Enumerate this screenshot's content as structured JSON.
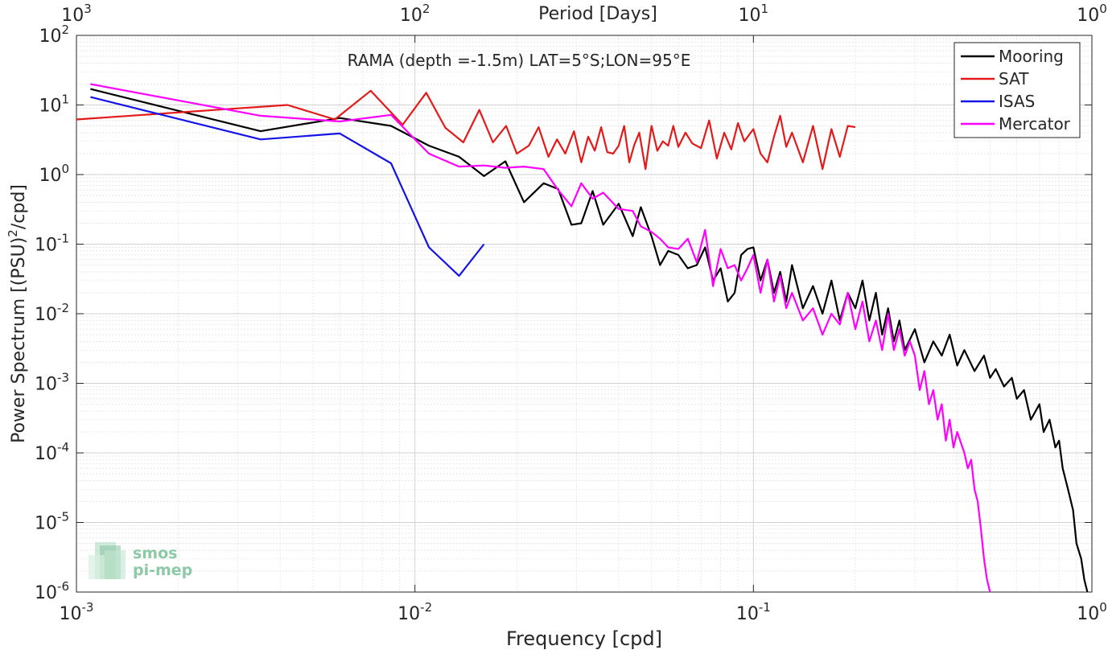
{
  "chart_data": {
    "type": "line",
    "title": "RAMA (depth =-1.5m) LAT=5°S;LON=95°E",
    "xlabel": "Frequency [cpd]",
    "ylabel": "Power Spectrum [(PSU)",
    "ylabel_sup": "2",
    "ylabel_tail": "/cpd]",
    "top_xlabel": "Period [Days]",
    "xscale": "log",
    "yscale": "log",
    "xlim": [
      0.001,
      1
    ],
    "ylim": [
      1e-06,
      100
    ],
    "grid": true,
    "legend_position": "top-right",
    "x_ticks": [
      {
        "value": 0.001,
        "base": "10",
        "exp": "-3"
      },
      {
        "value": 0.01,
        "base": "10",
        "exp": "-2"
      },
      {
        "value": 0.1,
        "base": "10",
        "exp": "-1"
      },
      {
        "value": 1,
        "base": "10",
        "exp": "0"
      }
    ],
    "top_x_ticks": [
      {
        "value": 0.001,
        "base": "10",
        "exp": "3"
      },
      {
        "value": 0.01,
        "base": "10",
        "exp": "2"
      },
      {
        "value": 0.1,
        "base": "10",
        "exp": "1"
      },
      {
        "value": 1,
        "base": "10",
        "exp": "0"
      }
    ],
    "y_ticks": [
      {
        "value": 100,
        "base": "10",
        "exp": "2"
      },
      {
        "value": 10,
        "base": "10",
        "exp": "1"
      },
      {
        "value": 1,
        "base": "10",
        "exp": "0"
      },
      {
        "value": 0.1,
        "base": "10",
        "exp": "-1"
      },
      {
        "value": 0.01,
        "base": "10",
        "exp": "-2"
      },
      {
        "value": 0.001,
        "base": "10",
        "exp": "-3"
      },
      {
        "value": 0.0001,
        "base": "10",
        "exp": "-4"
      },
      {
        "value": 1e-05,
        "base": "10",
        "exp": "-5"
      },
      {
        "value": 1e-06,
        "base": "10",
        "exp": "-6"
      }
    ],
    "series": [
      {
        "name": "Mooring",
        "color": "#000000",
        "points": [
          [
            0.0011,
            17
          ],
          [
            0.0035,
            4.2
          ],
          [
            0.006,
            6.5
          ],
          [
            0.0085,
            5
          ],
          [
            0.011,
            2.6
          ],
          [
            0.0135,
            1.8
          ],
          [
            0.016,
            0.95
          ],
          [
            0.0185,
            1.55
          ],
          [
            0.021,
            0.4
          ],
          [
            0.024,
            0.75
          ],
          [
            0.0265,
            0.62
          ],
          [
            0.029,
            0.19
          ],
          [
            0.031,
            0.2
          ],
          [
            0.0335,
            0.58
          ],
          [
            0.036,
            0.19
          ],
          [
            0.04,
            0.38
          ],
          [
            0.044,
            0.13
          ],
          [
            0.0465,
            0.34
          ],
          [
            0.05,
            0.13
          ],
          [
            0.053,
            0.05
          ],
          [
            0.056,
            0.08
          ],
          [
            0.06,
            0.07
          ],
          [
            0.064,
            0.045
          ],
          [
            0.068,
            0.05
          ],
          [
            0.072,
            0.09
          ],
          [
            0.076,
            0.03
          ],
          [
            0.08,
            0.045
          ],
          [
            0.084,
            0.015
          ],
          [
            0.088,
            0.02
          ],
          [
            0.092,
            0.07
          ],
          [
            0.096,
            0.085
          ],
          [
            0.1,
            0.09
          ],
          [
            0.105,
            0.03
          ],
          [
            0.11,
            0.06
          ],
          [
            0.115,
            0.02
          ],
          [
            0.12,
            0.04
          ],
          [
            0.125,
            0.015
          ],
          [
            0.13,
            0.05
          ],
          [
            0.14,
            0.012
          ],
          [
            0.15,
            0.025
          ],
          [
            0.16,
            0.01
          ],
          [
            0.17,
            0.03
          ],
          [
            0.18,
            0.008
          ],
          [
            0.19,
            0.02
          ],
          [
            0.2,
            0.012
          ],
          [
            0.21,
            0.03
          ],
          [
            0.22,
            0.008
          ],
          [
            0.23,
            0.02
          ],
          [
            0.24,
            0.005
          ],
          [
            0.25,
            0.012
          ],
          [
            0.26,
            0.004
          ],
          [
            0.27,
            0.008
          ],
          [
            0.28,
            0.003
          ],
          [
            0.3,
            0.006
          ],
          [
            0.32,
            0.002
          ],
          [
            0.34,
            0.004
          ],
          [
            0.36,
            0.0025
          ],
          [
            0.38,
            0.005
          ],
          [
            0.4,
            0.0018
          ],
          [
            0.42,
            0.003
          ],
          [
            0.45,
            0.0015
          ],
          [
            0.48,
            0.0025
          ],
          [
            0.5,
            0.0012
          ],
          [
            0.52,
            0.0016
          ],
          [
            0.55,
            0.0009
          ],
          [
            0.58,
            0.0012
          ],
          [
            0.6,
            0.0006
          ],
          [
            0.63,
            0.0008
          ],
          [
            0.66,
            0.0003
          ],
          [
            0.7,
            0.0005
          ],
          [
            0.72,
            0.0002
          ],
          [
            0.75,
            0.0003
          ],
          [
            0.78,
            0.00012
          ],
          [
            0.8,
            0.00015
          ],
          [
            0.82,
            6e-05
          ],
          [
            0.85,
            3e-05
          ],
          [
            0.88,
            1.5e-05
          ],
          [
            0.9,
            5e-06
          ],
          [
            0.93,
            3e-06
          ],
          [
            0.95,
            1.5e-06
          ],
          [
            0.97,
            1e-06
          ]
        ]
      },
      {
        "name": "SAT",
        "color": "#e41a1a",
        "points": [
          [
            0.001,
            6.2
          ],
          [
            0.0042,
            10
          ],
          [
            0.0058,
            6.2
          ],
          [
            0.0074,
            16
          ],
          [
            0.0092,
            5.2
          ],
          [
            0.0108,
            15
          ],
          [
            0.0123,
            4.7
          ],
          [
            0.0139,
            2.9
          ],
          [
            0.0155,
            8.5
          ],
          [
            0.017,
            2.9
          ],
          [
            0.0186,
            5
          ],
          [
            0.02,
            2
          ],
          [
            0.0217,
            2.6
          ],
          [
            0.0232,
            4.8
          ],
          [
            0.0248,
            1.8
          ],
          [
            0.0263,
            3.2
          ],
          [
            0.0278,
            2
          ],
          [
            0.0295,
            4.2
          ],
          [
            0.031,
            1.5
          ],
          [
            0.0325,
            3.5
          ],
          [
            0.034,
            2.2
          ],
          [
            0.0355,
            4.8
          ],
          [
            0.037,
            2.1
          ],
          [
            0.0385,
            2
          ],
          [
            0.04,
            2.6
          ],
          [
            0.0415,
            5
          ],
          [
            0.043,
            1.5
          ],
          [
            0.0445,
            2.7
          ],
          [
            0.046,
            4
          ],
          [
            0.048,
            1.2
          ],
          [
            0.05,
            5
          ],
          [
            0.052,
            2.2
          ],
          [
            0.054,
            3
          ],
          [
            0.056,
            2.6
          ],
          [
            0.058,
            5
          ],
          [
            0.06,
            2.5
          ],
          [
            0.063,
            4
          ],
          [
            0.066,
            2.8
          ],
          [
            0.07,
            2.4
          ],
          [
            0.074,
            6
          ],
          [
            0.078,
            1.7
          ],
          [
            0.082,
            4
          ],
          [
            0.086,
            2.3
          ],
          [
            0.09,
            5.5
          ],
          [
            0.094,
            3
          ],
          [
            0.1,
            4.5
          ],
          [
            0.105,
            2
          ],
          [
            0.11,
            1.5
          ],
          [
            0.115,
            3.5
          ],
          [
            0.12,
            7
          ],
          [
            0.125,
            2.5
          ],
          [
            0.13,
            4
          ],
          [
            0.14,
            1.5
          ],
          [
            0.15,
            5
          ],
          [
            0.16,
            1.2
          ],
          [
            0.17,
            4.5
          ],
          [
            0.18,
            1.8
          ],
          [
            0.19,
            5
          ],
          [
            0.2,
            4.8
          ]
        ]
      },
      {
        "name": "ISAS",
        "color": "#1414e6",
        "points": [
          [
            0.0011,
            13
          ],
          [
            0.0035,
            3.2
          ],
          [
            0.006,
            3.9
          ],
          [
            0.0085,
            1.45
          ],
          [
            0.011,
            0.09
          ],
          [
            0.0135,
            0.035
          ],
          [
            0.016,
            0.1
          ]
        ]
      },
      {
        "name": "Mercator",
        "color": "#ff00ff",
        "points": [
          [
            0.0011,
            20
          ],
          [
            0.0035,
            7
          ],
          [
            0.006,
            5.8
          ],
          [
            0.0085,
            7.2
          ],
          [
            0.011,
            2
          ],
          [
            0.0135,
            1.3
          ],
          [
            0.016,
            1.35
          ],
          [
            0.0185,
            1.25
          ],
          [
            0.021,
            1.3
          ],
          [
            0.024,
            1.2
          ],
          [
            0.0265,
            0.6
          ],
          [
            0.029,
            0.35
          ],
          [
            0.031,
            0.75
          ],
          [
            0.0335,
            0.45
          ],
          [
            0.036,
            0.55
          ],
          [
            0.04,
            0.32
          ],
          [
            0.044,
            0.3
          ],
          [
            0.0465,
            0.18
          ],
          [
            0.05,
            0.15
          ],
          [
            0.053,
            0.12
          ],
          [
            0.056,
            0.09
          ],
          [
            0.06,
            0.085
          ],
          [
            0.064,
            0.12
          ],
          [
            0.068,
            0.055
          ],
          [
            0.072,
            0.16
          ],
          [
            0.076,
            0.025
          ],
          [
            0.08,
            0.085
          ],
          [
            0.084,
            0.045
          ],
          [
            0.088,
            0.05
          ],
          [
            0.092,
            0.03
          ],
          [
            0.096,
            0.045
          ],
          [
            0.1,
            0.07
          ],
          [
            0.105,
            0.02
          ],
          [
            0.11,
            0.06
          ],
          [
            0.115,
            0.015
          ],
          [
            0.12,
            0.035
          ],
          [
            0.125,
            0.012
          ],
          [
            0.13,
            0.02
          ],
          [
            0.14,
            0.008
          ],
          [
            0.15,
            0.012
          ],
          [
            0.16,
            0.005
          ],
          [
            0.17,
            0.01
          ],
          [
            0.18,
            0.007
          ],
          [
            0.19,
            0.02
          ],
          [
            0.2,
            0.006
          ],
          [
            0.21,
            0.015
          ],
          [
            0.22,
            0.004
          ],
          [
            0.23,
            0.008
          ],
          [
            0.24,
            0.003
          ],
          [
            0.25,
            0.01
          ],
          [
            0.26,
            0.003
          ],
          [
            0.27,
            0.006
          ],
          [
            0.28,
            0.0025
          ],
          [
            0.29,
            0.004
          ],
          [
            0.3,
            0.0025
          ],
          [
            0.31,
            0.0008
          ],
          [
            0.32,
            0.0015
          ],
          [
            0.33,
            0.0005
          ],
          [
            0.34,
            0.0008
          ],
          [
            0.35,
            0.0003
          ],
          [
            0.36,
            0.0005
          ],
          [
            0.37,
            0.00015
          ],
          [
            0.38,
            0.0003
          ],
          [
            0.39,
            0.00012
          ],
          [
            0.4,
            0.0002
          ],
          [
            0.42,
            0.0001
          ],
          [
            0.43,
            6e-05
          ],
          [
            0.44,
            8e-05
          ],
          [
            0.45,
            3e-05
          ],
          [
            0.46,
            2e-05
          ],
          [
            0.47,
            8e-06
          ],
          [
            0.48,
            3e-06
          ],
          [
            0.49,
            1.5e-06
          ],
          [
            0.5,
            1e-06
          ]
        ]
      }
    ]
  },
  "logo": {
    "line1": "smos",
    "line2": "pi-mep",
    "color": "#7fbf9a"
  }
}
